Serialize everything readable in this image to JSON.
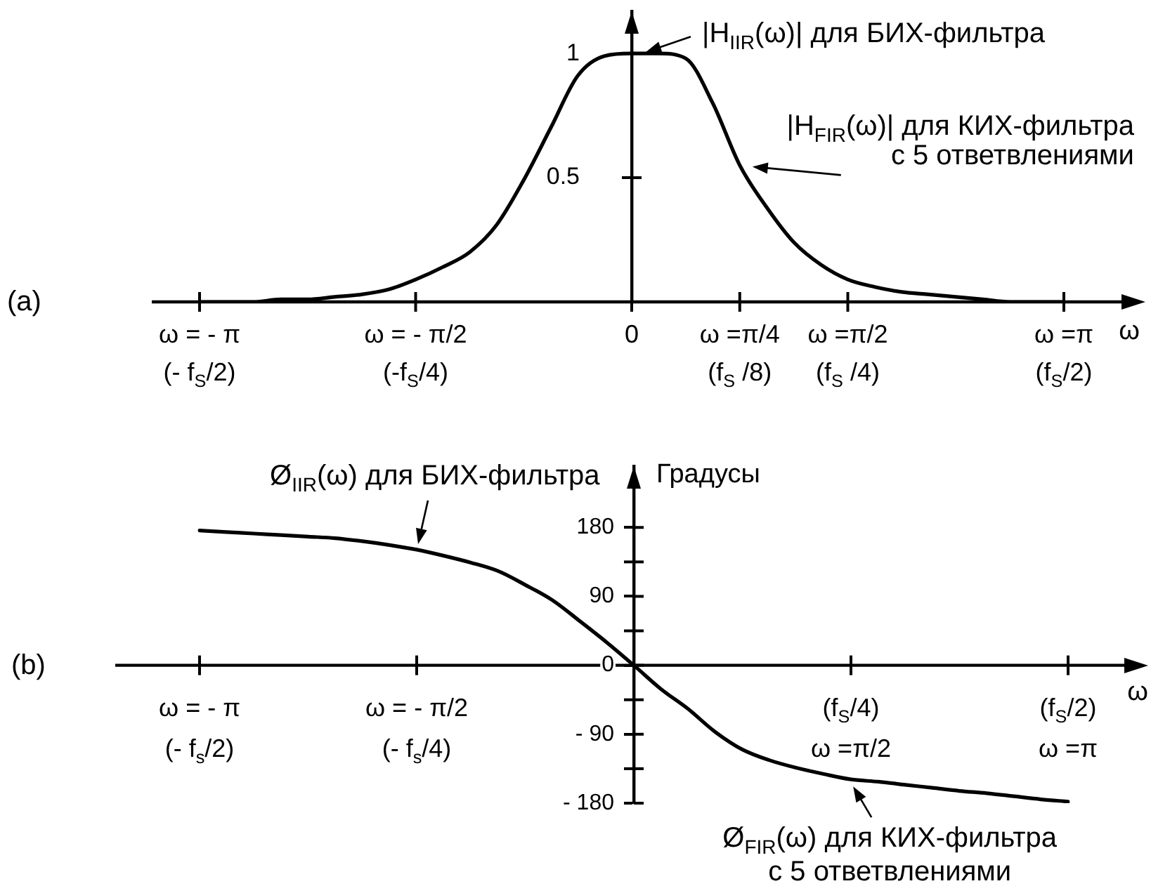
{
  "chart_data": [
    {
      "type": "line",
      "title": "(a)",
      "xlabel": "ω",
      "categories": [
        "ω = - π\n(- f$_{S}$/2)",
        null,
        null,
        null,
        null,
        null,
        null,
        null,
        "ω = - π/2\n(-f$_{S}$/4)",
        null,
        null,
        null,
        null,
        null,
        null,
        null,
        "0",
        null,
        null,
        null,
        "ω =π/4\n(f$_{S}$ /8)",
        null,
        null,
        null,
        "ω =π/2\n(f$_{S}$ /4)",
        null,
        null,
        null,
        null,
        null,
        null,
        null,
        "ω =π\n(f$_{S}$/2)"
      ],
      "series": [
        {
          "color": "#000000",
          "values": [
            0,
            0,
            0,
            0.01,
            0.01,
            0.02,
            0.03,
            0.05,
            0.09,
            0.14,
            0.2,
            0.31,
            0.49,
            0.7,
            0.91,
            0.99,
            1,
            1,
            0.98,
            0.8,
            0.55,
            0.38,
            0.24,
            0.15,
            0.09,
            0.06,
            0.04,
            0.03,
            0.02,
            0.01,
            0,
            0,
            0
          ]
        }
      ],
      "ylim": [
        0,
        1.17
      ],
      "yticks": [
        0.5,
        1
      ],
      "annotations": [
        {
          "text": "|H$_{IIR}$(ω)| для БИХ-фильтра",
          "x": "0",
          "y": 1
        },
        {
          "text": "|H$_{FIR}$(ω)| для КИХ-фильтра\nс 5 ответвлениями",
          "x": "ω =π/4\n(f$_{S}$ /8)",
          "y": 0.55
        }
      ]
    },
    {
      "type": "line",
      "title": "(b)",
      "xlabel": "ω",
      "ylabel": "Градусы",
      "categories": [
        "ω = - π\n(- f$_{s}$/2)",
        null,
        null,
        null,
        null,
        null,
        null,
        null,
        "ω = - π/2\n(- f$_{s}$/4)",
        null,
        null,
        null,
        null,
        null,
        null,
        null,
        null,
        null,
        null,
        null,
        null,
        null,
        null,
        null,
        "(f$_{S}$/4)\nω =π/2",
        null,
        null,
        null,
        null,
        null,
        null,
        null,
        "(f$_{S}$/2)\nω =π"
      ],
      "series": [
        {
          "color": "#000000",
          "values": [
            176,
            174,
            172,
            170,
            168,
            166,
            162,
            157,
            151,
            143,
            134,
            123,
            105,
            85,
            58,
            30,
            0,
            -31,
            -57,
            -87,
            -110,
            -124,
            -134,
            -142,
            -149,
            -152,
            -156,
            -160,
            -164,
            -167,
            -171,
            -175,
            -178
          ]
        }
      ],
      "ylim": [
        -180,
        260
      ],
      "yticks": [
        180,
        90,
        0,
        {
          "value": -90,
          "label": "- 90"
        },
        {
          "value": -180,
          "label": "- 180"
        }
      ],
      "annotations": [
        {
          "text": "Ø$_{IIR}$(ω) для БИХ-фильтра",
          "x": "ω = - π/2\n(- f$_{s}$/4)",
          "y": 151
        },
        {
          "text": "Ø$_{FIR}$(ω) для КИХ-фильтра\nс 5 ответвлениями",
          "x": "(f$_{S}$/4)\nω =π/2",
          "y": -149
        }
      ]
    }
  ]
}
